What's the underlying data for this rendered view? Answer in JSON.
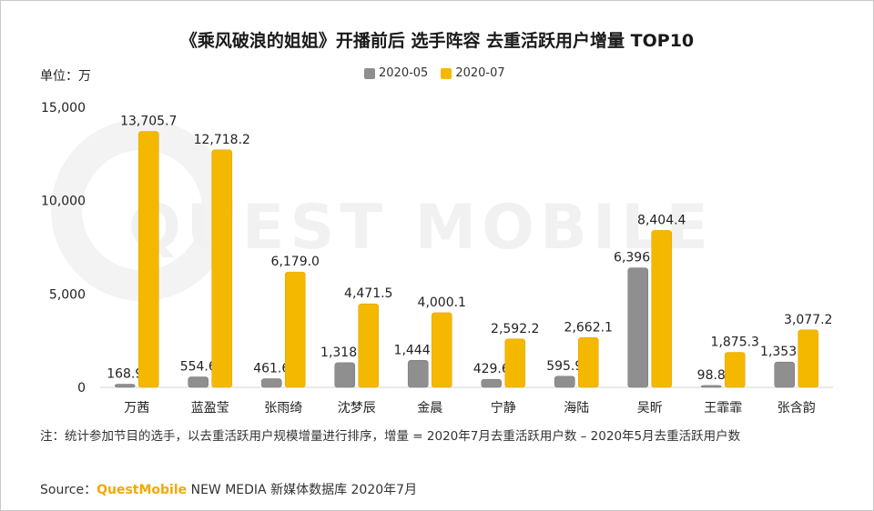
{
  "title": "《乘风破浪的姐姐》开播前后  选手阵容 去重活跃用户增量 TOP10",
  "unit_label": "单位：万",
  "note": "注：统计参加节目的选手，以去重活跃用户规模增量进行排序，增量 = 2020年7月去重活跃用户数 – 2020年5月去重活跃用户数",
  "source": {
    "prefix": "Source：",
    "brand": "QuestMobile",
    "rest": " NEW MEDIA 新媒体数据库 2020年7月"
  },
  "watermark": "QUEST MOBILE",
  "colors": {
    "series_2020_05": "#8f8f8f",
    "series_2020_07": "#f5b800"
  },
  "chart_data": {
    "type": "bar",
    "categories": [
      "万茜",
      "蓝盈莹",
      "张雨绮",
      "沈梦辰",
      "金晨",
      "宁静",
      "海陆",
      "吴昕",
      "王霏霏",
      "张含韵"
    ],
    "series": [
      {
        "name": "2020-05",
        "values": [
          168.9,
          554.6,
          461.6,
          1318.0,
          1444.6,
          429.6,
          595.9,
          6396.4,
          98.8,
          1353.2
        ],
        "labels": [
          "168.9",
          "554.6",
          "461.6",
          "1,318.0",
          "1,444.6",
          "429.6",
          "595.9",
          "6,396.4",
          "98.8",
          "1,353.2"
        ]
      },
      {
        "name": "2020-07",
        "values": [
          13705.7,
          12718.2,
          6179.0,
          4471.5,
          4000.1,
          2592.2,
          2662.1,
          8404.4,
          1875.3,
          3077.2
        ],
        "labels": [
          "13,705.7",
          "12,718.2",
          "6,179.0",
          "4,471.5",
          "4,000.1",
          "2,592.2",
          "2,662.1",
          "8,404.4",
          "1,875.3",
          "3,077.2"
        ]
      }
    ],
    "yticks": [
      0,
      5000,
      10000,
      15000
    ],
    "ytick_labels": [
      "0",
      "5,000",
      "10,000",
      "15,000"
    ],
    "ylim": [
      0,
      15000
    ],
    "legend_position": "top-center",
    "grid": false
  }
}
